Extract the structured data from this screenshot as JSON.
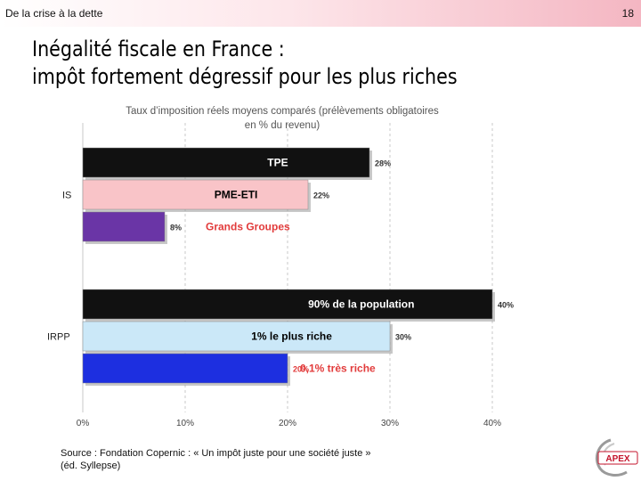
{
  "header": {
    "section": "De la crise à la dette",
    "page_number": "18"
  },
  "title": {
    "line1": "Inégalité fiscale en France :",
    "line2": "impôt fortement dégressif pour les plus riches"
  },
  "chart_data": {
    "type": "bar",
    "orientation": "horizontal",
    "title_line1": "Taux d’imposition réels moyens comparés (prélèvements obligatoires",
    "title_line2": "en % du revenu)",
    "xlim": [
      0,
      40
    ],
    "x_ticks": [
      "0%",
      "10%",
      "20%",
      "30%",
      "40%"
    ],
    "grid": true,
    "groups": [
      {
        "label": "IS",
        "bars": [
          {
            "name": "TPE",
            "value": 28,
            "value_label": "28%",
            "color": "#111111",
            "label_color": "#ffffff"
          },
          {
            "name": "PME-ETI",
            "value": 22,
            "value_label": "22%",
            "color": "#f9c4c8",
            "label_color": "#000000"
          },
          {
            "name": "Grands Groupes",
            "value": 8,
            "value_label": "8%",
            "color": "#6a35a6",
            "label_color": "#e23b3b"
          }
        ]
      },
      {
        "label": "IRPP",
        "bars": [
          {
            "name": "90% de la population",
            "value": 40,
            "value_label": "40%",
            "color": "#111111",
            "label_color": "#ffffff"
          },
          {
            "name": "1% le plus riche",
            "value": 30,
            "value_label": "30%",
            "color": "#cbe8f8",
            "label_color": "#000000"
          },
          {
            "name": "0,1% très riche",
            "value": 20,
            "value_label": "20%",
            "color": "#1d2fe0",
            "label_color": "#e23b3b"
          }
        ]
      }
    ]
  },
  "source": {
    "line1": "Source : Fondation Copernic : « Un impôt juste pour une société juste »",
    "line2": "(éd. Syllepse)"
  },
  "logo": {
    "text": "APEX",
    "color": "#c4142c"
  }
}
